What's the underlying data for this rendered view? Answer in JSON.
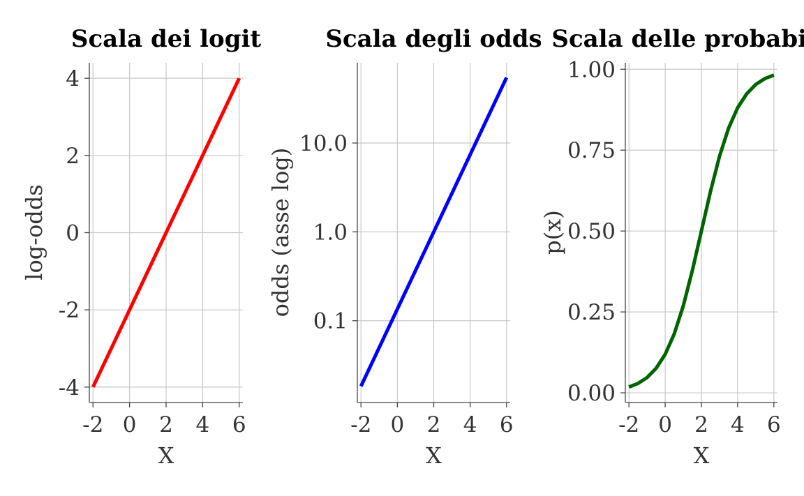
{
  "chart_data": [
    {
      "type": "line",
      "title": "Scala dei logit",
      "xlabel": "X",
      "ylabel": "log-odds",
      "x_scale": "linear",
      "y_scale": "linear",
      "xlim": [
        -2.2,
        6.2
      ],
      "ylim": [
        -4.4,
        4.4
      ],
      "x_ticks": [
        -2,
        0,
        2,
        4,
        6
      ],
      "y_ticks": [
        -4,
        -2,
        0,
        2,
        4
      ],
      "x_tick_labels": [
        "-2",
        "0",
        "2",
        "4",
        "6"
      ],
      "y_tick_labels": [
        "-4",
        "-2",
        "0",
        "2",
        "4"
      ],
      "grid": true,
      "series": [
        {
          "color": "#ff0000",
          "x": [
            -2,
            6
          ],
          "y": [
            -4,
            4
          ]
        }
      ]
    },
    {
      "type": "line",
      "title": "Scala degli odds",
      "xlabel": "X",
      "ylabel": "odds (asse log)",
      "x_scale": "linear",
      "y_scale": "log",
      "xlim": [
        -2.2,
        6.2
      ],
      "ylim": [
        0.012,
        80
      ],
      "x_ticks": [
        -2,
        0,
        2,
        4,
        6
      ],
      "y_ticks": [
        0.1,
        1.0,
        10.0
      ],
      "x_tick_labels": [
        "-2",
        "0",
        "2",
        "4",
        "6"
      ],
      "y_tick_labels": [
        "0.1",
        "1.0",
        "10.0"
      ],
      "grid": true,
      "series": [
        {
          "color": "#0000ff",
          "x": [
            -2,
            6
          ],
          "y": [
            0.0183,
            54.6
          ]
        }
      ]
    },
    {
      "type": "line",
      "title": "Scala delle probabilità",
      "xlabel": "X",
      "ylabel": "p(x)",
      "x_scale": "linear",
      "y_scale": "linear",
      "xlim": [
        -2.2,
        6.2
      ],
      "ylim": [
        -0.03,
        1.02
      ],
      "x_ticks": [
        -2,
        0,
        2,
        4,
        6
      ],
      "y_ticks": [
        0,
        0.25,
        0.5,
        0.75,
        1.0
      ],
      "x_tick_labels": [
        "-2",
        "0",
        "2",
        "4",
        "6"
      ],
      "y_tick_labels": [
        "0.00",
        "0.25",
        "0.50",
        "0.75",
        "1.00"
      ],
      "grid": true,
      "series": [
        {
          "color": "#006400",
          "x": [
            -2,
            -1.5,
            -1,
            -0.5,
            0,
            0.5,
            1,
            1.5,
            2,
            2.5,
            3,
            3.5,
            4,
            4.5,
            5,
            5.5,
            6
          ],
          "y": [
            0.018,
            0.029,
            0.047,
            0.076,
            0.119,
            0.182,
            0.269,
            0.378,
            0.5,
            0.622,
            0.731,
            0.818,
            0.881,
            0.924,
            0.953,
            0.971,
            0.982
          ]
        }
      ]
    }
  ]
}
